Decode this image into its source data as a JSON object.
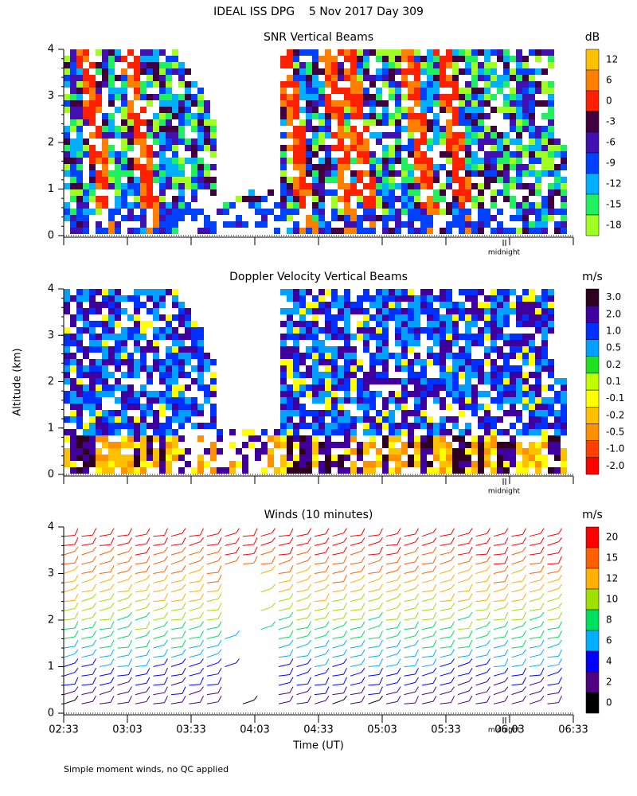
{
  "title": "IDEAL ISS DPG    5 Nov 2017 Day 309",
  "y_axis_label": "Altitude (km)",
  "x_axis_label": "Time (UT)",
  "xticks": [
    "02:33",
    "03:03",
    "03:33",
    "04:03",
    "04:33",
    "05:03",
    "05:33",
    "06:03",
    "06:33"
  ],
  "midnight_label": "midnight",
  "footnote": "Simple moment winds, no QC applied",
  "panels": [
    {
      "title": "SNR Vertical Beams",
      "units": "dB",
      "kind": "snr",
      "ylim": [
        0,
        4
      ],
      "yticks": [
        0,
        1,
        2,
        3,
        4
      ],
      "colorbar": [
        {
          "value": 12,
          "color": "#ffc000"
        },
        {
          "value": 6,
          "color": "#ff8000"
        },
        {
          "value": 0,
          "color": "#ff2000"
        },
        {
          "value": -3,
          "color": "#400040"
        },
        {
          "value": -6,
          "color": "#4010b0"
        },
        {
          "value": -9,
          "color": "#0040ff"
        },
        {
          "value": -12,
          "color": "#00b0ff"
        },
        {
          "value": -15,
          "color": "#20f060"
        },
        {
          "value": -18,
          "color": "#a0ff20"
        }
      ]
    },
    {
      "title": "Doppler Velocity Vertical Beams",
      "units": "m/s",
      "kind": "doppler",
      "ylim": [
        0,
        4
      ],
      "yticks": [
        0,
        1,
        2,
        3,
        4
      ],
      "colorbar": [
        {
          "value": 3,
          "label": "3.0",
          "color": "#300020"
        },
        {
          "value": 2,
          "label": "2.0",
          "color": "#4000a0"
        },
        {
          "value": 1,
          "label": "1.0",
          "color": "#0030ff"
        },
        {
          "value": 0.5,
          "color": "#00a0ff"
        },
        {
          "value": 0.2,
          "color": "#20e020"
        },
        {
          "value": 0.1,
          "color": "#c0ff00"
        },
        {
          "value": -0.1,
          "color": "#ffff00"
        },
        {
          "value": -0.2,
          "color": "#ffc000"
        },
        {
          "value": -0.5,
          "color": "#ff9000"
        },
        {
          "value": -1,
          "label": "-1.0",
          "color": "#ff4000"
        },
        {
          "value": -2,
          "label": "-2.0",
          "color": "#ff0000"
        }
      ]
    },
    {
      "title": "Winds (10 minutes)",
      "units": "m/s",
      "kind": "winds",
      "ylim": [
        0,
        4
      ],
      "yticks": [
        0,
        1,
        2,
        3,
        4
      ],
      "colorbar": [
        {
          "value": 20,
          "color": "#ff0000"
        },
        {
          "value": 15,
          "color": "#ff6000"
        },
        {
          "value": 12,
          "color": "#ffb000"
        },
        {
          "value": 10,
          "color": "#a0e000"
        },
        {
          "value": 8,
          "color": "#00e060"
        },
        {
          "value": 6,
          "color": "#00b0ff"
        },
        {
          "value": 4,
          "color": "#0000ff"
        },
        {
          "value": 2,
          "color": "#500080"
        },
        {
          "value": 0,
          "color": "#000000"
        }
      ]
    }
  ]
}
